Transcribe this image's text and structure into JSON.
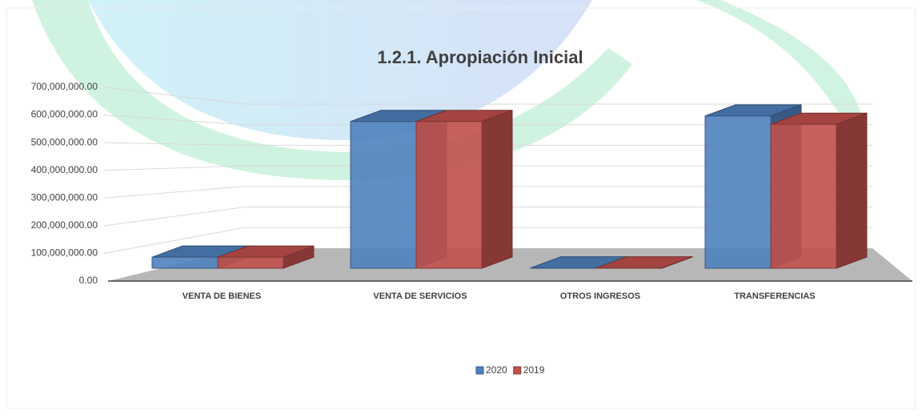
{
  "chart_data": {
    "type": "bar3d",
    "title": "1.2.1. Apropiación Inicial",
    "categories": [
      "VENTA DE BIENES",
      "VENTA DE SERVICIOS",
      "OTROS INGRESOS",
      "TRANSFERENCIAS"
    ],
    "series": [
      {
        "name": "2020",
        "color": "#4f81bd",
        "values": [
          40000000,
          530000000,
          1000000,
          550000000
        ]
      },
      {
        "name": "2019",
        "color": "#c0504d",
        "values": [
          40000000,
          530000000,
          1000000,
          520000000
        ]
      }
    ],
    "ylim": [
      0,
      700000000
    ],
    "yticks": [
      {
        "value": 0,
        "label": "0.00"
      },
      {
        "value": 100000000,
        "label": "100,000,000.00"
      },
      {
        "value": 200000000,
        "label": "200,000,000.00"
      },
      {
        "value": 300000000,
        "label": "300,000,000.00"
      },
      {
        "value": 400000000,
        "label": "400,000,000.00"
      },
      {
        "value": 500000000,
        "label": "500,000,000.00"
      },
      {
        "value": 600000000,
        "label": "600,000,000.00"
      },
      {
        "value": 700000000,
        "label": "700,000,000.00"
      }
    ],
    "grid": true,
    "legend": "bottom"
  }
}
